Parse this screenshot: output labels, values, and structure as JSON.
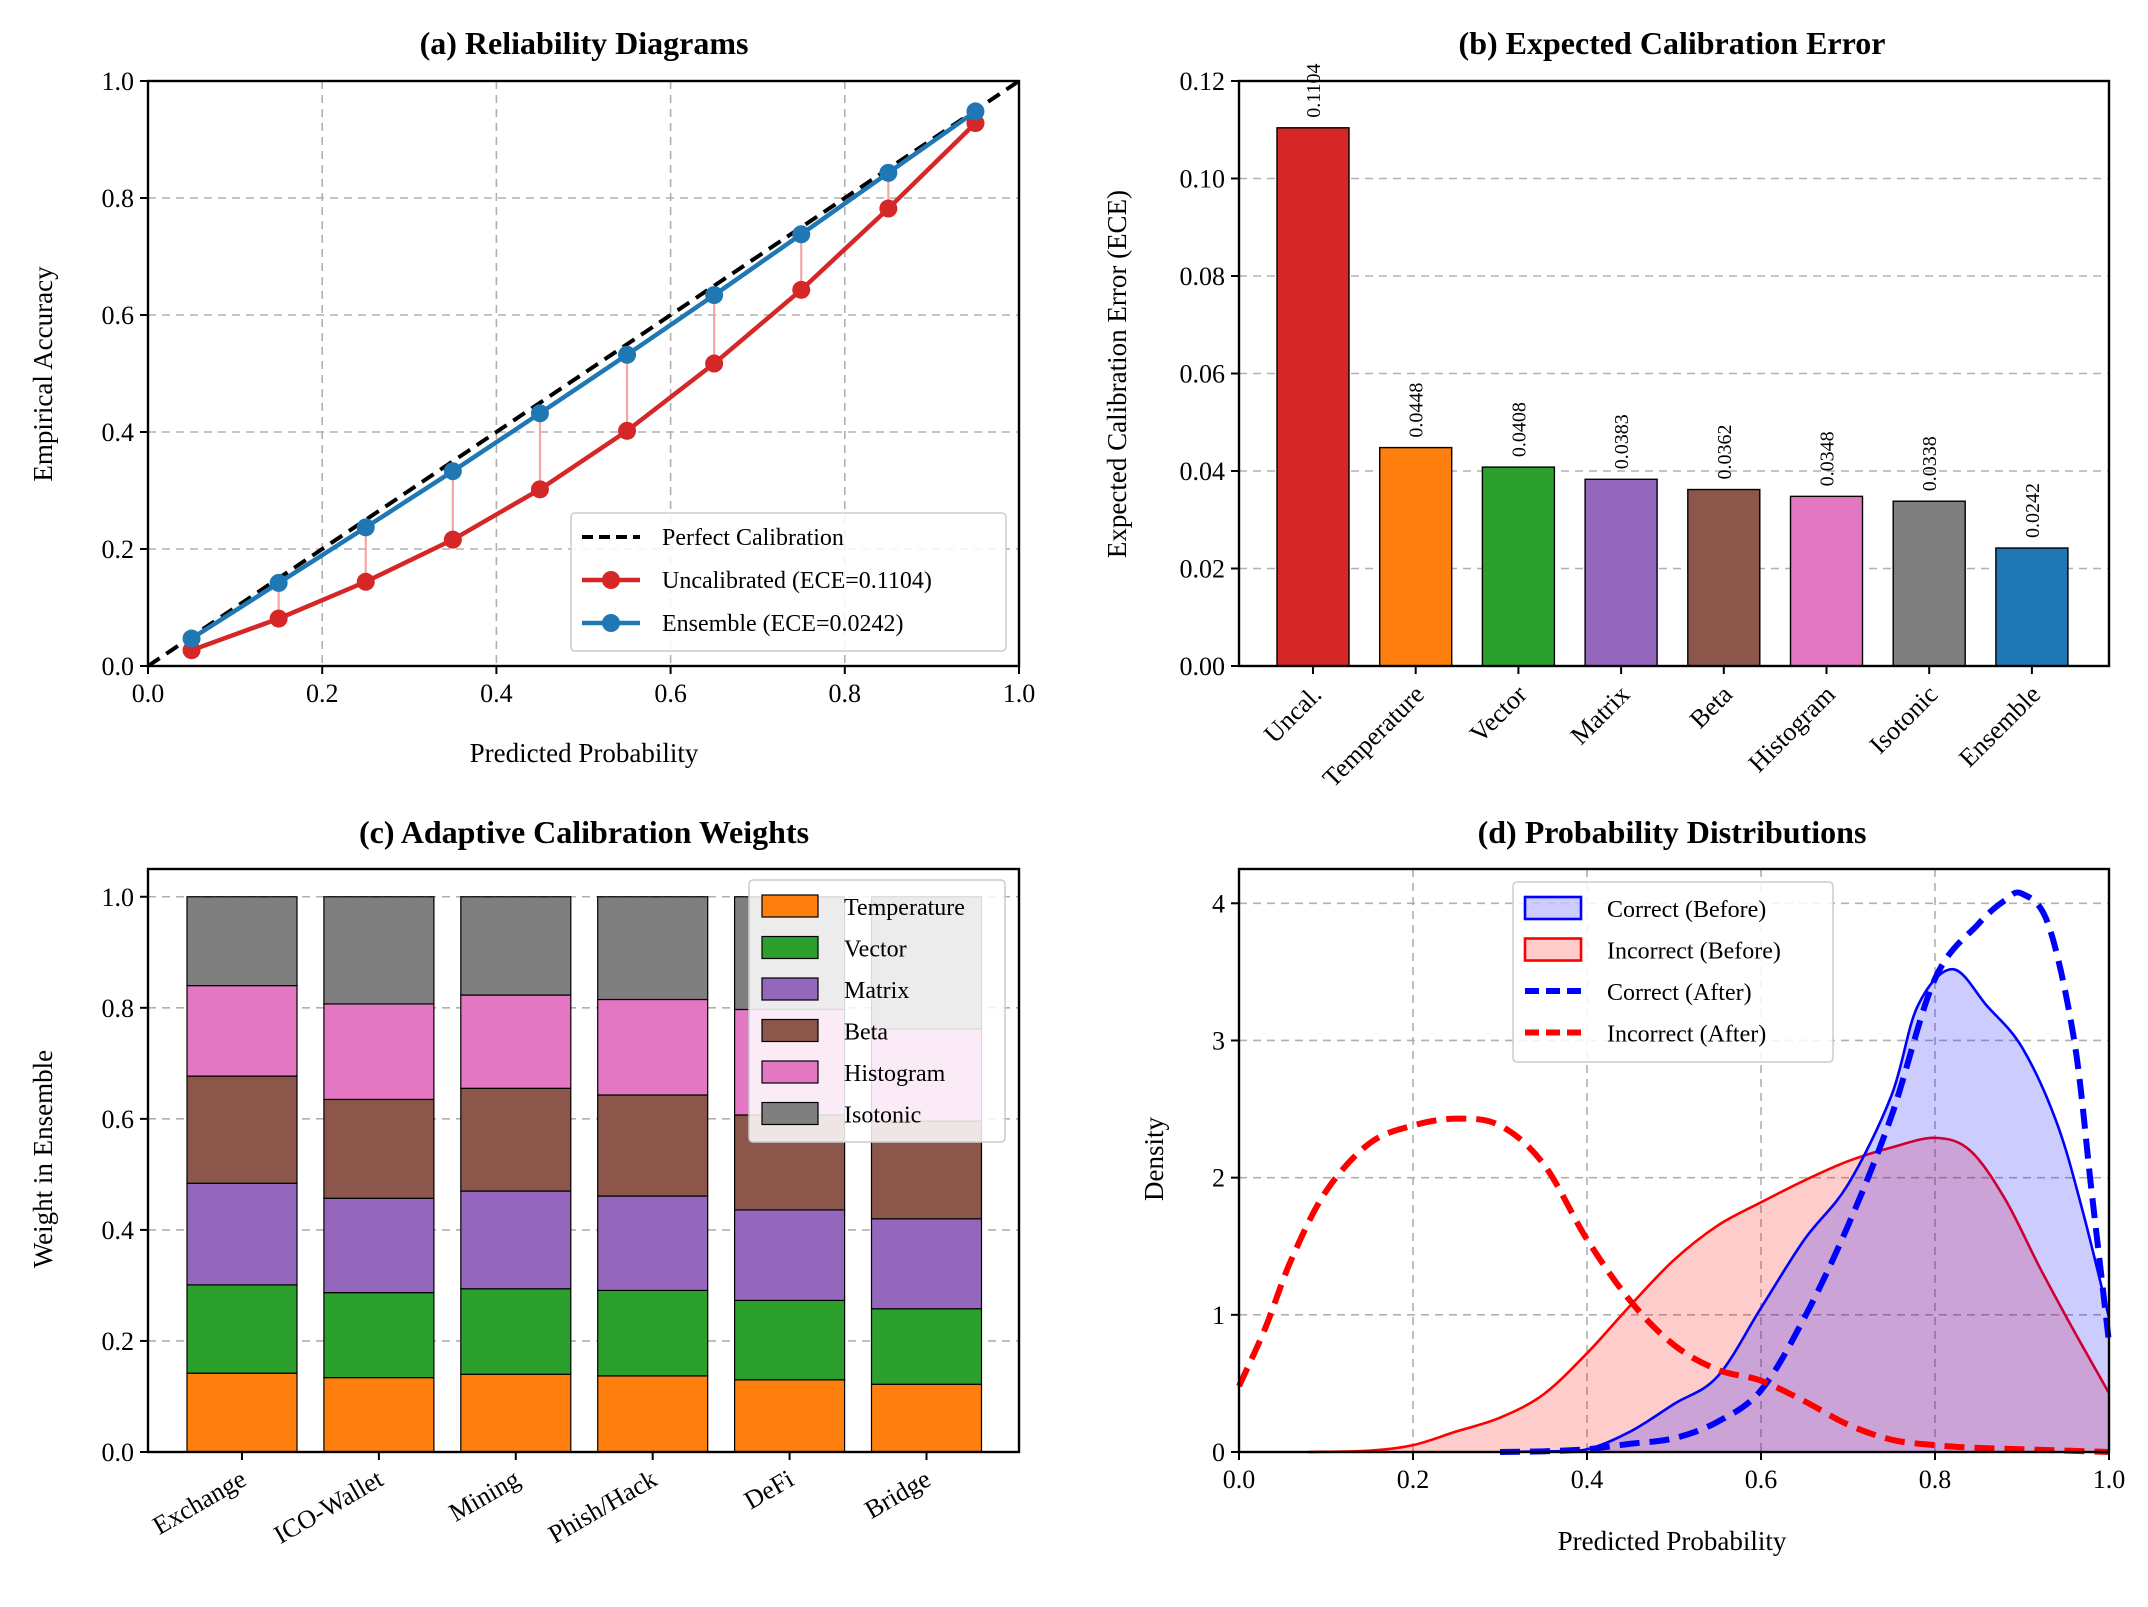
{
  "chart_data": [
    {
      "type": "line",
      "title": "(a) Reliability Diagrams",
      "xlabel": "Predicted Probability",
      "ylabel": "Empirical Accuracy",
      "xlim": [
        0,
        1
      ],
      "ylim": [
        0,
        1
      ],
      "xticks": [
        "0.0",
        "0.2",
        "0.4",
        "0.6",
        "0.8",
        "1.0"
      ],
      "yticks": [
        "0.0",
        "0.2",
        "0.4",
        "0.6",
        "0.8",
        "1.0"
      ],
      "grid": true,
      "legend_position": "lower-right",
      "x": [
        0.05,
        0.15,
        0.25,
        0.35,
        0.45,
        0.55,
        0.65,
        0.75,
        0.85,
        0.95
      ],
      "series": [
        {
          "name": "Perfect Calibration",
          "color": "#000000",
          "style": "dashed",
          "x": [
            0,
            1
          ],
          "values": [
            0,
            1
          ]
        },
        {
          "name": "Uncalibrated (ECE=0.1104)",
          "color": "#d62728",
          "values": [
            0.027,
            0.081,
            0.144,
            0.216,
            0.302,
            0.402,
            0.517,
            0.643,
            0.782,
            0.928
          ]
        },
        {
          "name": "Ensemble (ECE=0.0242)",
          "color": "#1f77b4",
          "values": [
            0.047,
            0.142,
            0.237,
            0.333,
            0.432,
            0.532,
            0.634,
            0.738,
            0.843,
            0.948
          ]
        }
      ]
    },
    {
      "type": "bar",
      "title": "(b) Expected Calibration Error",
      "ylabel": "Expected Calibration Error (ECE)",
      "ylim": [
        0,
        0.12
      ],
      "yticks": [
        "0.00",
        "0.02",
        "0.04",
        "0.06",
        "0.08",
        "0.10",
        "0.12"
      ],
      "grid": true,
      "categories": [
        "Uncal.",
        "Temperature",
        "Vector",
        "Matrix",
        "Beta",
        "Histogram",
        "Isotonic",
        "Ensemble"
      ],
      "values": [
        0.1104,
        0.0448,
        0.0408,
        0.0383,
        0.0362,
        0.0348,
        0.0338,
        0.0242
      ],
      "data_labels": [
        "0.1104",
        "0.0448",
        "0.0408",
        "0.0383",
        "0.0362",
        "0.0348",
        "0.0338",
        "0.0242"
      ],
      "colors": [
        "#d62728",
        "#ff7f0e",
        "#2ca02c",
        "#9467bd",
        "#8c564b",
        "#e377c2",
        "#7f7f7f",
        "#1f77b4"
      ]
    },
    {
      "type": "bar",
      "stacked": true,
      "title": "(c) Adaptive Calibration Weights",
      "ylabel": "Weight in Ensemble",
      "ylim": [
        0,
        1.05
      ],
      "yticks": [
        "0.0",
        "0.2",
        "0.4",
        "0.6",
        "0.8",
        "1.0"
      ],
      "grid": true,
      "legend_position": "upper-right",
      "categories": [
        "Exchange",
        "ICO-Wallet",
        "Mining",
        "Phish/Hack",
        "DeFi",
        "Bridge"
      ],
      "series": [
        {
          "name": "Temperature",
          "color": "#ff7f0e",
          "values": [
            0.142,
            0.134,
            0.14,
            0.137,
            0.13,
            0.122
          ]
        },
        {
          "name": "Vector",
          "color": "#2ca02c",
          "values": [
            0.159,
            0.153,
            0.154,
            0.154,
            0.143,
            0.136
          ]
        },
        {
          "name": "Matrix",
          "color": "#9467bd",
          "values": [
            0.183,
            0.17,
            0.176,
            0.17,
            0.163,
            0.162
          ]
        },
        {
          "name": "Beta",
          "color": "#8c564b",
          "values": [
            0.193,
            0.178,
            0.185,
            0.182,
            0.171,
            0.176
          ]
        },
        {
          "name": "Histogram",
          "color": "#e377c2",
          "values": [
            0.163,
            0.172,
            0.168,
            0.172,
            0.19,
            0.166
          ]
        },
        {
          "name": "Isotonic",
          "color": "#7f7f7f",
          "values": [
            0.16,
            0.193,
            0.177,
            0.185,
            0.203,
            0.238
          ]
        }
      ]
    },
    {
      "type": "area",
      "title": "(d) Probability Distributions",
      "xlabel": "Predicted Probability",
      "ylabel": "Density",
      "xlim": [
        0,
        1
      ],
      "ylim": [
        0,
        4.25
      ],
      "xticks": [
        "0.0",
        "0.2",
        "0.4",
        "0.6",
        "0.8",
        "1.0"
      ],
      "yticks": [
        "0",
        "1",
        "2",
        "3",
        "4"
      ],
      "grid": true,
      "legend_position": "upper-center",
      "series": [
        {
          "name": "Correct (Before)",
          "color": "#0000ff",
          "style": "filled",
          "points": [
            [
              0.3,
              0
            ],
            [
              0.35,
              0.005
            ],
            [
              0.4,
              0.02
            ],
            [
              0.45,
              0.15
            ],
            [
              0.5,
              0.35
            ],
            [
              0.55,
              0.55
            ],
            [
              0.6,
              1.05
            ],
            [
              0.65,
              1.55
            ],
            [
              0.7,
              1.95
            ],
            [
              0.75,
              2.6
            ],
            [
              0.78,
              3.25
            ],
            [
              0.82,
              3.52
            ],
            [
              0.86,
              3.25
            ],
            [
              0.9,
              2.95
            ],
            [
              0.94,
              2.4
            ],
            [
              0.97,
              1.75
            ],
            [
              1.0,
              0.98
            ]
          ]
        },
        {
          "name": "Incorrect (Before)",
          "color": "#ff0000",
          "style": "filled",
          "points": [
            [
              0.08,
              0
            ],
            [
              0.15,
              0.01
            ],
            [
              0.2,
              0.05
            ],
            [
              0.25,
              0.15
            ],
            [
              0.3,
              0.25
            ],
            [
              0.35,
              0.42
            ],
            [
              0.4,
              0.72
            ],
            [
              0.45,
              1.07
            ],
            [
              0.5,
              1.4
            ],
            [
              0.55,
              1.65
            ],
            [
              0.6,
              1.82
            ],
            [
              0.65,
              1.98
            ],
            [
              0.7,
              2.12
            ],
            [
              0.75,
              2.22
            ],
            [
              0.8,
              2.29
            ],
            [
              0.84,
              2.2
            ],
            [
              0.88,
              1.85
            ],
            [
              0.92,
              1.35
            ],
            [
              0.96,
              0.88
            ],
            [
              1.0,
              0.43
            ]
          ]
        },
        {
          "name": "Correct (After)",
          "color": "#0000ff",
          "style": "dashed",
          "points": [
            [
              0.3,
              0
            ],
            [
              0.35,
              0.005
            ],
            [
              0.4,
              0.02
            ],
            [
              0.45,
              0.06
            ],
            [
              0.5,
              0.1
            ],
            [
              0.55,
              0.22
            ],
            [
              0.6,
              0.45
            ],
            [
              0.65,
              0.98
            ],
            [
              0.7,
              1.65
            ],
            [
              0.75,
              2.45
            ],
            [
              0.8,
              3.45
            ],
            [
              0.85,
              3.85
            ],
            [
              0.88,
              4.02
            ],
            [
              0.9,
              4.07
            ],
            [
              0.93,
              3.85
            ],
            [
              0.96,
              3.0
            ],
            [
              0.98,
              1.9
            ],
            [
              1.0,
              0.8
            ]
          ]
        },
        {
          "name": "Incorrect (After)",
          "color": "#ff0000",
          "style": "dashed",
          "points": [
            [
              0.0,
              0.48
            ],
            [
              0.03,
              0.9
            ],
            [
              0.06,
              1.4
            ],
            [
              0.1,
              1.9
            ],
            [
              0.15,
              2.25
            ],
            [
              0.2,
              2.38
            ],
            [
              0.25,
              2.43
            ],
            [
              0.3,
              2.38
            ],
            [
              0.35,
              2.1
            ],
            [
              0.4,
              1.55
            ],
            [
              0.45,
              1.1
            ],
            [
              0.5,
              0.78
            ],
            [
              0.55,
              0.6
            ],
            [
              0.6,
              0.52
            ],
            [
              0.65,
              0.37
            ],
            [
              0.7,
              0.2
            ],
            [
              0.75,
              0.09
            ],
            [
              0.8,
              0.05
            ],
            [
              0.85,
              0.03
            ],
            [
              0.9,
              0.02
            ],
            [
              0.95,
              0.01
            ],
            [
              1.0,
              0.0
            ]
          ]
        }
      ]
    }
  ]
}
